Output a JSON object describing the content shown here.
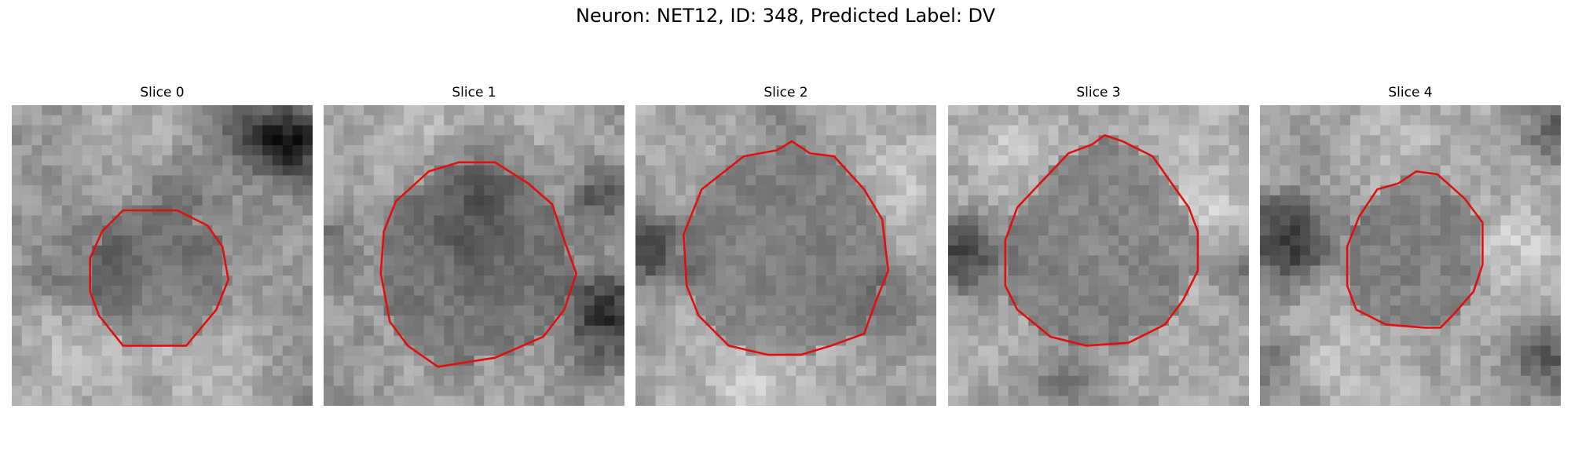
{
  "figure": {
    "title": "Neuron: NET12, ID: 348, Predicted Label: DV",
    "outline_color": "#e01010",
    "colormap": "gray",
    "grid_size": 30
  },
  "panels": [
    {
      "title": "Slice 0",
      "seed": 11,
      "mean": 150,
      "std": 40,
      "dark_spots": [
        [
          0.93,
          0.13,
          0.12,
          120
        ],
        [
          0.78,
          0.08,
          0.12,
          60
        ],
        [
          0.55,
          0.3,
          0.1,
          55
        ],
        [
          0.25,
          0.55,
          0.15,
          35
        ],
        [
          0.5,
          0.72,
          0.12,
          -20
        ]
      ],
      "bright_spots": [
        [
          0.2,
          0.85,
          0.18,
          45
        ],
        [
          0.65,
          0.9,
          0.2,
          35
        ],
        [
          0.4,
          0.1,
          0.18,
          25
        ]
      ],
      "contour": [
        [
          0.37,
          0.35
        ],
        [
          0.55,
          0.35
        ],
        [
          0.65,
          0.4
        ],
        [
          0.7,
          0.47
        ],
        [
          0.72,
          0.58
        ],
        [
          0.68,
          0.68
        ],
        [
          0.58,
          0.8
        ],
        [
          0.47,
          0.8
        ],
        [
          0.37,
          0.8
        ],
        [
          0.29,
          0.7
        ],
        [
          0.26,
          0.62
        ],
        [
          0.26,
          0.51
        ],
        [
          0.3,
          0.42
        ]
      ]
    },
    {
      "title": "Slice 1",
      "seed": 23,
      "mean": 155,
      "std": 42,
      "dark_spots": [
        [
          0.95,
          0.7,
          0.15,
          110
        ],
        [
          0.93,
          0.3,
          0.1,
          70
        ],
        [
          0.5,
          0.35,
          0.2,
          55
        ],
        [
          0.02,
          0.45,
          0.1,
          40
        ]
      ],
      "bright_spots": [
        [
          0.3,
          0.1,
          0.2,
          35
        ],
        [
          0.75,
          0.05,
          0.15,
          30
        ]
      ],
      "contour": [
        [
          0.35,
          0.22
        ],
        [
          0.45,
          0.19
        ],
        [
          0.57,
          0.19
        ],
        [
          0.68,
          0.26
        ],
        [
          0.76,
          0.33
        ],
        [
          0.8,
          0.45
        ],
        [
          0.84,
          0.56
        ],
        [
          0.8,
          0.68
        ],
        [
          0.73,
          0.77
        ],
        [
          0.57,
          0.84
        ],
        [
          0.38,
          0.87
        ],
        [
          0.28,
          0.8
        ],
        [
          0.22,
          0.72
        ],
        [
          0.19,
          0.56
        ],
        [
          0.2,
          0.42
        ],
        [
          0.24,
          0.32
        ]
      ]
    },
    {
      "title": "Slice 2",
      "seed": 37,
      "mean": 165,
      "std": 38,
      "dark_spots": [
        [
          0.05,
          0.48,
          0.12,
          100
        ],
        [
          0.85,
          0.68,
          0.12,
          50
        ],
        [
          0.5,
          0.08,
          0.1,
          30
        ]
      ],
      "bright_spots": [
        [
          0.4,
          0.92,
          0.2,
          35
        ],
        [
          0.9,
          0.25,
          0.15,
          30
        ]
      ],
      "contour": [
        [
          0.36,
          0.17
        ],
        [
          0.47,
          0.15
        ],
        [
          0.52,
          0.12
        ],
        [
          0.58,
          0.16
        ],
        [
          0.66,
          0.17
        ],
        [
          0.76,
          0.28
        ],
        [
          0.82,
          0.38
        ],
        [
          0.84,
          0.55
        ],
        [
          0.8,
          0.65
        ],
        [
          0.76,
          0.76
        ],
        [
          0.65,
          0.8
        ],
        [
          0.55,
          0.83
        ],
        [
          0.44,
          0.83
        ],
        [
          0.31,
          0.8
        ],
        [
          0.21,
          0.7
        ],
        [
          0.17,
          0.6
        ],
        [
          0.16,
          0.43
        ],
        [
          0.22,
          0.28
        ]
      ]
    },
    {
      "title": "Slice 3",
      "seed": 41,
      "mean": 170,
      "std": 40,
      "dark_spots": [
        [
          0.05,
          0.5,
          0.12,
          110
        ],
        [
          0.98,
          0.55,
          0.1,
          50
        ],
        [
          0.4,
          0.95,
          0.15,
          45
        ]
      ],
      "bright_spots": [
        [
          0.85,
          0.3,
          0.15,
          35
        ],
        [
          0.2,
          0.15,
          0.15,
          25
        ]
      ],
      "contour": [
        [
          0.4,
          0.16
        ],
        [
          0.48,
          0.13
        ],
        [
          0.52,
          0.1
        ],
        [
          0.58,
          0.12
        ],
        [
          0.68,
          0.17
        ],
        [
          0.75,
          0.27
        ],
        [
          0.8,
          0.34
        ],
        [
          0.83,
          0.42
        ],
        [
          0.83,
          0.55
        ],
        [
          0.78,
          0.65
        ],
        [
          0.72,
          0.73
        ],
        [
          0.6,
          0.79
        ],
        [
          0.46,
          0.8
        ],
        [
          0.34,
          0.77
        ],
        [
          0.23,
          0.68
        ],
        [
          0.19,
          0.6
        ],
        [
          0.19,
          0.45
        ],
        [
          0.23,
          0.34
        ]
      ]
    },
    {
      "title": "Slice 4",
      "seed": 53,
      "mean": 165,
      "std": 42,
      "dark_spots": [
        [
          0.1,
          0.45,
          0.15,
          110
        ],
        [
          0.95,
          0.85,
          0.12,
          70
        ],
        [
          0.98,
          0.08,
          0.1,
          60
        ],
        [
          0.02,
          0.85,
          0.1,
          50
        ]
      ],
      "bright_spots": [
        [
          0.85,
          0.45,
          0.12,
          40
        ],
        [
          0.3,
          0.8,
          0.15,
          30
        ],
        [
          0.5,
          0.1,
          0.15,
          25
        ]
      ],
      "contour": [
        [
          0.39,
          0.28
        ],
        [
          0.46,
          0.26
        ],
        [
          0.52,
          0.22
        ],
        [
          0.59,
          0.23
        ],
        [
          0.68,
          0.31
        ],
        [
          0.74,
          0.39
        ],
        [
          0.74,
          0.53
        ],
        [
          0.71,
          0.62
        ],
        [
          0.64,
          0.7
        ],
        [
          0.6,
          0.74
        ],
        [
          0.55,
          0.74
        ],
        [
          0.42,
          0.73
        ],
        [
          0.32,
          0.68
        ],
        [
          0.29,
          0.6
        ],
        [
          0.29,
          0.47
        ],
        [
          0.33,
          0.37
        ]
      ]
    }
  ]
}
